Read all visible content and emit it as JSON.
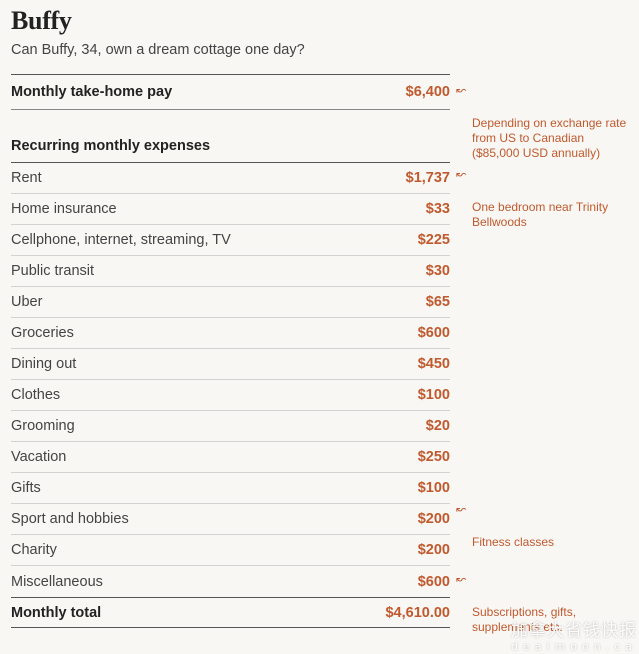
{
  "title": "Buffy",
  "subtitle": "Can Buffy, 34, own a dream cottage one day?",
  "income": {
    "label": "Monthly take-home pay",
    "value": "$6,400"
  },
  "expenses_heading": "Recurring monthly expenses",
  "expenses": [
    {
      "label": "Rent",
      "value": "$1,737"
    },
    {
      "label": "Home insurance",
      "value": "$33"
    },
    {
      "label": "Cellphone, internet, streaming, TV",
      "value": "$225"
    },
    {
      "label": "Public transit",
      "value": "$30"
    },
    {
      "label": "Uber",
      "value": "$65"
    },
    {
      "label": "Groceries",
      "value": "$600"
    },
    {
      "label": "Dining out",
      "value": "$450"
    },
    {
      "label": "Clothes",
      "value": "$100"
    },
    {
      "label": "Grooming",
      "value": "$20"
    },
    {
      "label": "Vacation",
      "value": "$250"
    },
    {
      "label": "Gifts",
      "value": "$100"
    },
    {
      "label": "Sport and hobbies",
      "value": "$200"
    },
    {
      "label": "Charity",
      "value": "$200"
    },
    {
      "label": "Miscellaneous",
      "value": "$600"
    }
  ],
  "total": {
    "label": "Monthly total",
    "value": "$4,610.00"
  },
  "notes": {
    "income": "Depending on exchange rate\nfrom US to Canadian\n($85,000 USD annually)",
    "rent": "One bedroom near Trinity\nBellwoods",
    "sport": "Fitness classes",
    "misc": "Subscriptions, gifts,\nsupplements etc."
  },
  "arrow_glyph": "↜",
  "watermark": {
    "line1": "加拿大省钱快报",
    "line2": "dealmoon.ca"
  },
  "colors": {
    "accent": "#c05a2e",
    "background": "#f8f7f4"
  }
}
